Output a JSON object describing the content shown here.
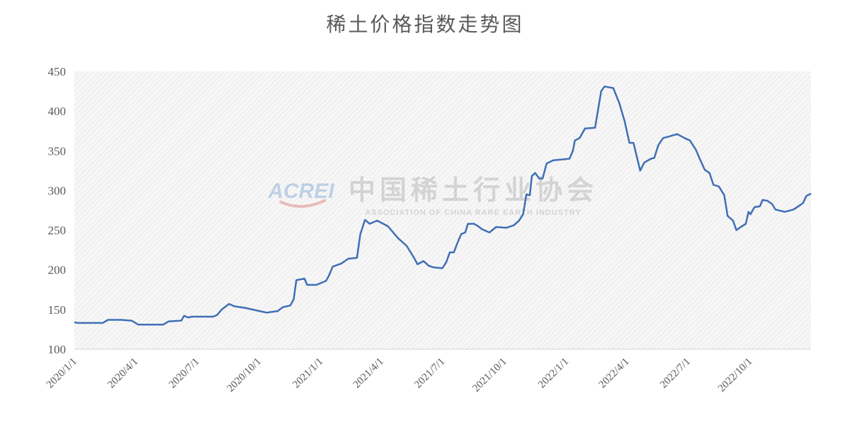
{
  "chart_data": {
    "type": "line",
    "title": "稀土价格指数走势图",
    "watermark": {
      "logo": "ACREI",
      "name": "中国稀土行业协会",
      "name_en": "ASSOCIATION OF CHINA RARE EARTH INDUSTRY"
    },
    "x": [
      "2020/1/1",
      "2020/1/6",
      "2020/2/12",
      "2020/2/20",
      "2020/3/10",
      "2020/3/26",
      "2020/4/5",
      "2020/5/12",
      "2020/5/20",
      "2020/6/8",
      "2020/6/12",
      "2020/6/18",
      "2020/6/24",
      "2020/7/25",
      "2020/7/31",
      "2020/8/7",
      "2020/8/18",
      "2020/8/26",
      "2020/9/11",
      "2020/9/27",
      "2020/10/13",
      "2020/10/29",
      "2020/11/6",
      "2020/11/17",
      "2020/11/22",
      "2020/11/26",
      "2020/12/8",
      "2020/12/12",
      "2020/12/26",
      "2021/1/9",
      "2021/1/13",
      "2021/1/19",
      "2021/2/1",
      "2021/2/11",
      "2021/2/24",
      "2021/3/1",
      "2021/3/8",
      "2021/3/15",
      "2021/3/26",
      "2021/4/11",
      "2021/4/26",
      "2021/5/9",
      "2021/5/20",
      "2021/5/25",
      "2021/6/3",
      "2021/6/11",
      "2021/6/18",
      "2021/7/1",
      "2021/7/7",
      "2021/7/12",
      "2021/7/18",
      "2021/7/23",
      "2021/7/29",
      "2021/8/4",
      "2021/8/8",
      "2021/8/17",
      "2021/8/23",
      "2021/8/29",
      "2021/9/9",
      "2021/9/19",
      "2021/10/4",
      "2021/10/15",
      "2021/10/23",
      "2021/10/29",
      "2021/11/3",
      "2021/11/8",
      "2021/11/11",
      "2021/11/16",
      "2021/11/22",
      "2021/11/27",
      "2021/12/3",
      "2021/12/13",
      "2021/12/26",
      "2022/1/6",
      "2022/1/11",
      "2022/1/14",
      "2022/1/21",
      "2022/1/29",
      "2022/2/13",
      "2022/2/22",
      "2022/2/27",
      "2022/3/12",
      "2022/3/21",
      "2022/3/29",
      "2022/4/5",
      "2022/4/11",
      "2022/4/17",
      "2022/4/21",
      "2022/4/27",
      "2022/5/7",
      "2022/5/12",
      "2022/5/18",
      "2022/5/25",
      "2022/6/3",
      "2022/6/15",
      "2022/6/26",
      "2022/7/4",
      "2022/7/13",
      "2022/7/18",
      "2022/7/26",
      "2022/8/2",
      "2022/8/8",
      "2022/8/16",
      "2022/8/24",
      "2022/8/29",
      "2022/9/6",
      "2022/9/11",
      "2022/9/16",
      "2022/9/25",
      "2022/9/29",
      "2022/10/2",
      "2022/10/8",
      "2022/10/16",
      "2022/10/20",
      "2022/10/27",
      "2022/11/3",
      "2022/11/8",
      "2022/11/17",
      "2022/11/22",
      "2022/12/5",
      "2022/12/12",
      "2022/12/19",
      "2022/12/24",
      "2022/12/31"
    ],
    "values": [
      134,
      133,
      133,
      137,
      137,
      136,
      131,
      131,
      135,
      136,
      142,
      140,
      141,
      141,
      143,
      150,
      157,
      154,
      152,
      149,
      146,
      148,
      153,
      155,
      163,
      187,
      189,
      181,
      181,
      186,
      192,
      204,
      208,
      214,
      215,
      245,
      263,
      258,
      262,
      255,
      240,
      230,
      215,
      207,
      211,
      205,
      203,
      202,
      210,
      222,
      222,
      233,
      245,
      247,
      258,
      258,
      255,
      251,
      247,
      254,
      253,
      256,
      262,
      270,
      295,
      294,
      318,
      322,
      315,
      315,
      334,
      338,
      339,
      340,
      350,
      363,
      366,
      378,
      379,
      425,
      431,
      429,
      410,
      387,
      360,
      360,
      339,
      325,
      335,
      340,
      341,
      357,
      366,
      368,
      371,
      366,
      363,
      351,
      341,
      326,
      322,
      307,
      305,
      294,
      268,
      262,
      250,
      253,
      258,
      273,
      270,
      279,
      280,
      288,
      287,
      283,
      276,
      274,
      273,
      276,
      280,
      284,
      293,
      296
    ],
    "color": "#3f6fb5",
    "xlim": [
      "2020/1/1",
      "2022/12/31"
    ],
    "xticks": [
      "2020/1/1",
      "2020/4/1",
      "2020/7/1",
      "2020/10/1",
      "2021/1/1",
      "2021/4/1",
      "2021/7/1",
      "2021/10/1",
      "2022/1/1",
      "2022/4/1",
      "2022/7/1",
      "2022/10/1"
    ],
    "ylim": [
      100,
      450
    ],
    "yticks": [
      100,
      150,
      200,
      250,
      300,
      350,
      400,
      450
    ],
    "grid": false
  }
}
